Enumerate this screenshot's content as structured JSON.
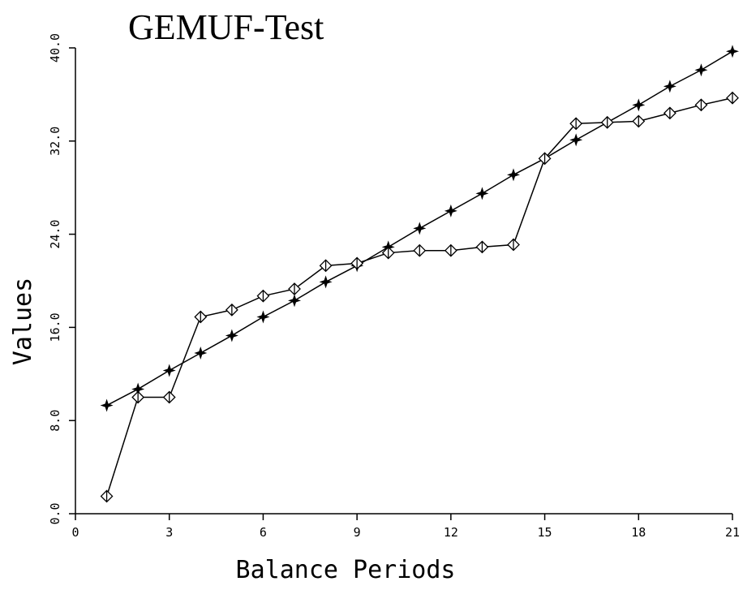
{
  "chart_data": {
    "type": "line",
    "title": "GEMUF-Test",
    "xlabel": "Balance Periods",
    "ylabel": "Values",
    "x": [
      1,
      2,
      3,
      4,
      5,
      6,
      7,
      8,
      9,
      10,
      11,
      12,
      13,
      14,
      15,
      16,
      17,
      18,
      19,
      20,
      21
    ],
    "series": [
      {
        "color": "#000000",
        "marker": "star",
        "values": [
          9.3,
          10.7,
          12.3,
          13.8,
          15.3,
          16.9,
          18.3,
          19.9,
          21.3,
          22.9,
          24.5,
          26.0,
          27.5,
          29.1,
          30.5,
          32.1,
          33.6,
          35.1,
          36.7,
          38.1,
          39.7
        ]
      },
      {
        "color": "#000000",
        "marker": "diamond",
        "values": [
          1.5,
          10.0,
          10.0,
          16.9,
          17.5,
          18.7,
          19.3,
          21.3,
          21.5,
          22.4,
          22.6,
          22.6,
          22.9,
          23.1,
          30.5,
          33.5,
          33.6,
          33.7,
          34.4,
          35.1,
          35.7
        ]
      }
    ],
    "xlim": [
      0,
      21
    ],
    "xticks": [
      0,
      3,
      6,
      9,
      12,
      15,
      18,
      21
    ],
    "ylim": [
      0,
      40
    ],
    "yticks": [
      {
        "value": 0,
        "label": "0.0"
      },
      {
        "value": 8,
        "label": "8.0"
      },
      {
        "value": 16,
        "label": "16.0"
      },
      {
        "value": 24,
        "label": "24.0"
      },
      {
        "value": 32,
        "label": "32.0"
      },
      {
        "value": 40,
        "label": "40.0"
      }
    ],
    "grid": false
  }
}
